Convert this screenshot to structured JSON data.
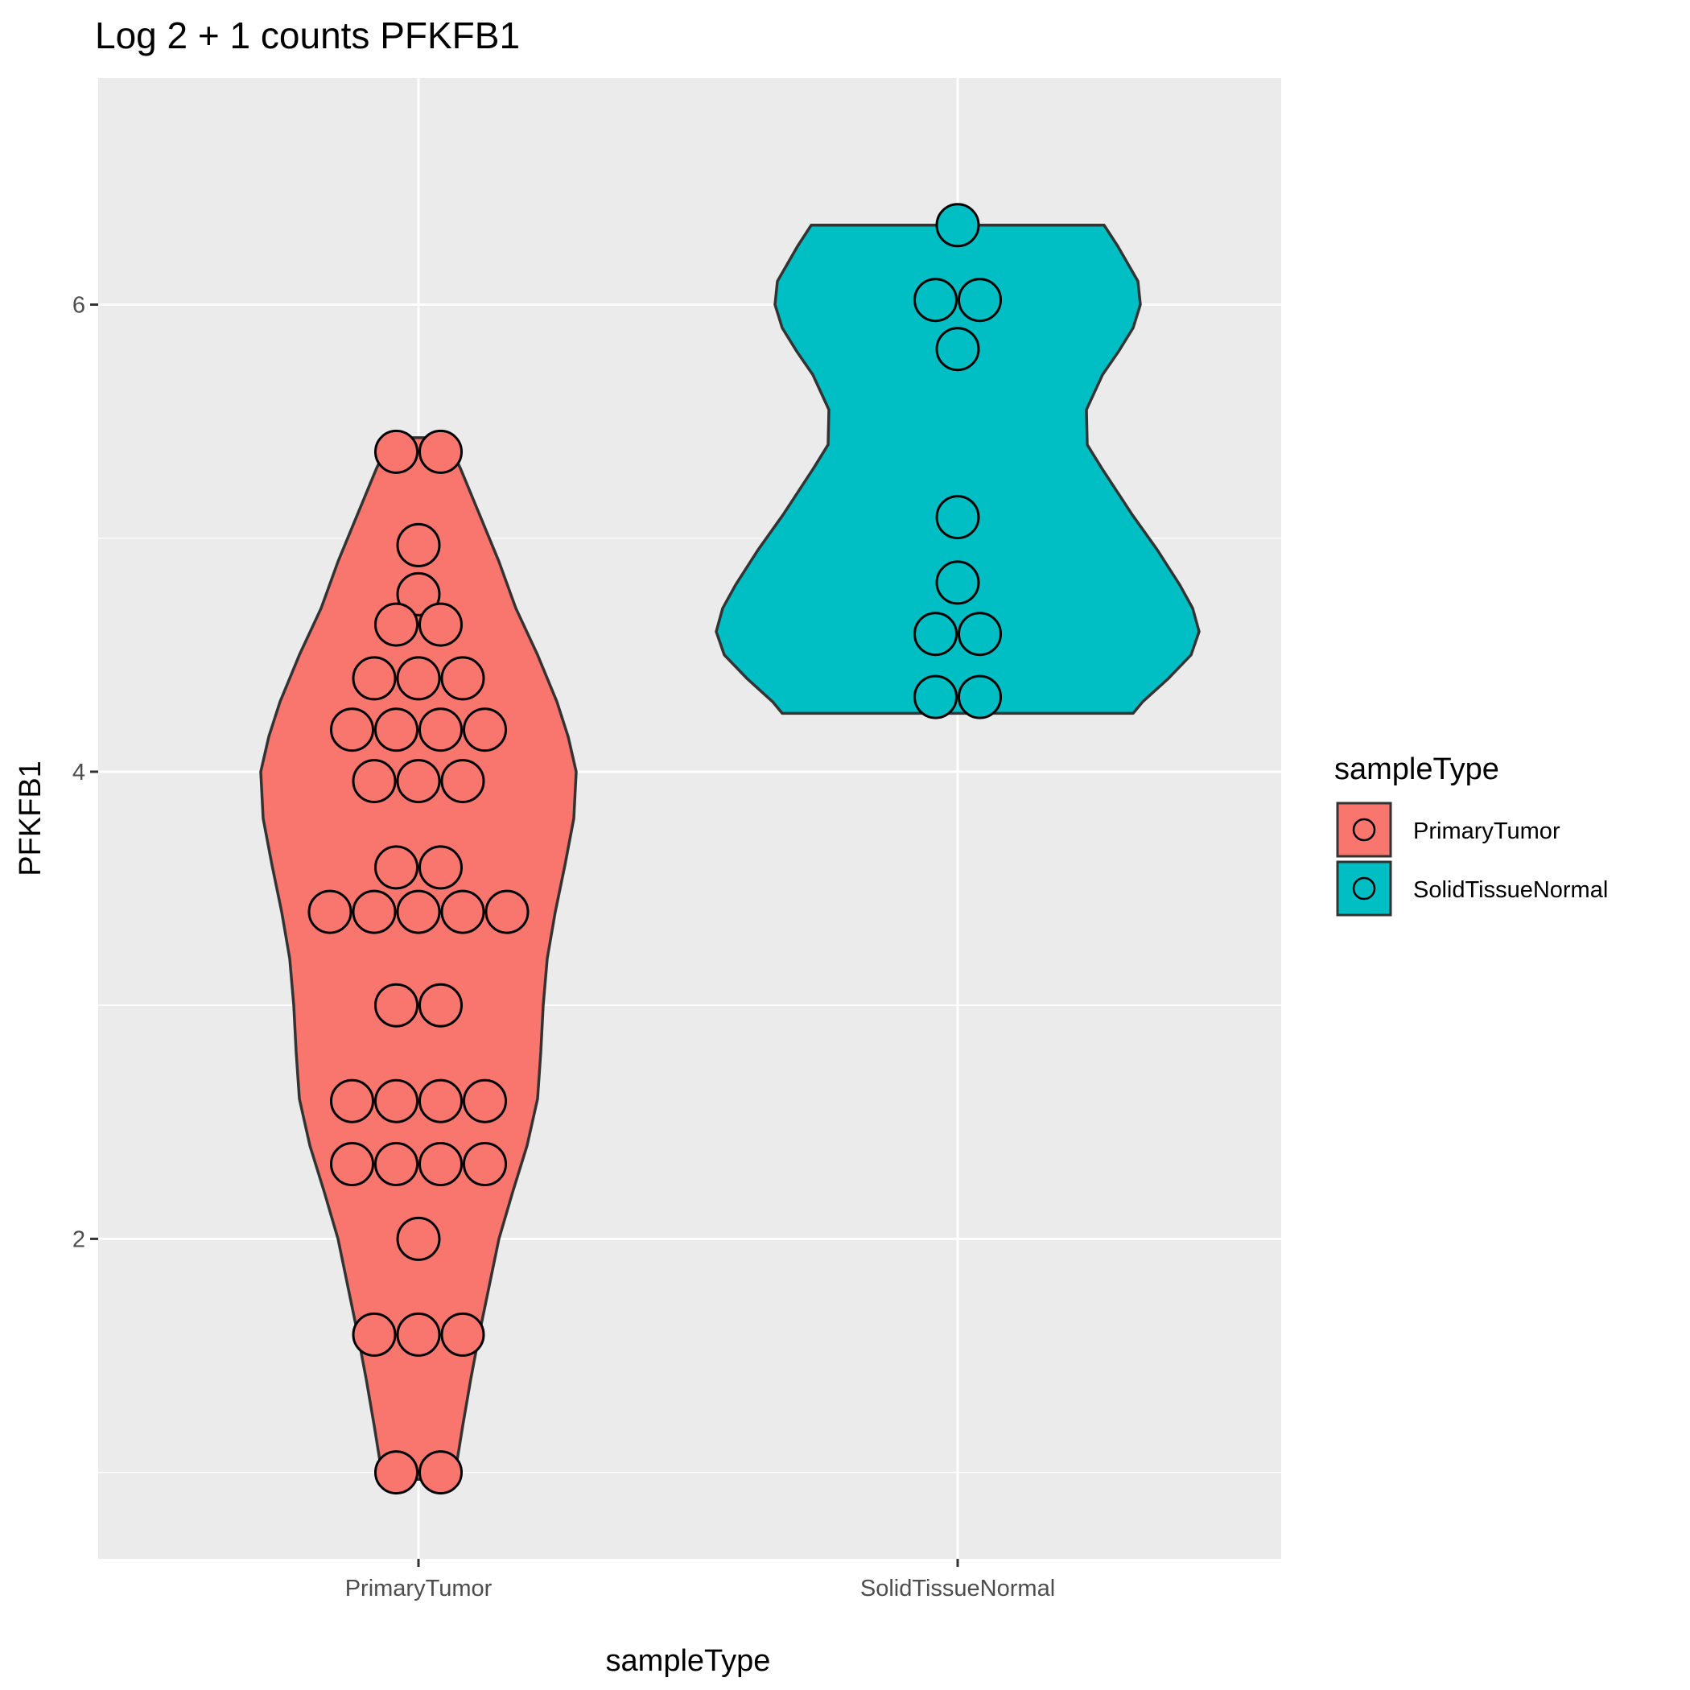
{
  "chart_data": {
    "type": "violin",
    "title": "Log 2 + 1 counts PFKFB1",
    "xlabel": "sampleType",
    "ylabel": "PFKFB1",
    "categories": [
      "PrimaryTumor",
      "SolidTissueNormal"
    ],
    "y_ticks": [
      2,
      4,
      6
    ],
    "ylim": [
      0.63,
      6.97
    ],
    "grid": true,
    "legend": {
      "title": "sampleType",
      "position": "right",
      "entries": [
        "PrimaryTumor",
        "SolidTissueNormal"
      ]
    },
    "colors": {
      "PrimaryTumor": "#F8766D",
      "SolidTissueNormal": "#00BFC4",
      "panel": "#EBEBEB",
      "outline": "#333333"
    },
    "series": [
      {
        "name": "PrimaryTumor",
        "y_range": [
          0.97,
          5.43
        ],
        "points": [
          {
            "y": 5.37,
            "n": 2
          },
          {
            "y": 4.97,
            "n": 1
          },
          {
            "y": 4.76,
            "n": 1
          },
          {
            "y": 4.63,
            "n": 2
          },
          {
            "y": 4.4,
            "n": 3
          },
          {
            "y": 4.18,
            "n": 4
          },
          {
            "y": 3.96,
            "n": 3
          },
          {
            "y": 3.59,
            "n": 2
          },
          {
            "y": 3.4,
            "n": 5
          },
          {
            "y": 3.0,
            "n": 2
          },
          {
            "y": 2.59,
            "n": 4
          },
          {
            "y": 2.32,
            "n": 4
          },
          {
            "y": 2.0,
            "n": 1
          },
          {
            "y": 1.59,
            "n": 3
          },
          {
            "y": 1.0,
            "n": 2
          }
        ]
      },
      {
        "name": "SolidTissueNormal",
        "y_range": [
          4.25,
          6.34
        ],
        "points": [
          {
            "y": 6.34,
            "n": 1
          },
          {
            "y": 6.02,
            "n": 2
          },
          {
            "y": 5.81,
            "n": 1
          },
          {
            "y": 5.09,
            "n": 1
          },
          {
            "y": 4.81,
            "n": 1
          },
          {
            "y": 4.59,
            "n": 2
          },
          {
            "y": 4.32,
            "n": 2
          }
        ]
      }
    ]
  }
}
